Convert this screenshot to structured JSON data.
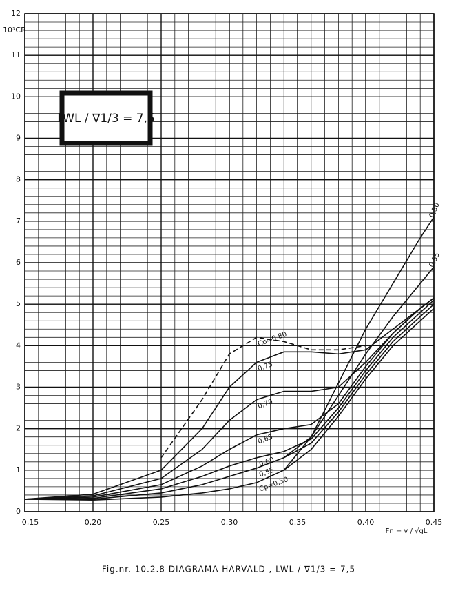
{
  "chart_data": {
    "type": "line",
    "caption": "Fig.nr. 10.2.8   DIAGRAMA HARVALD ,  LWL / ∇1/3 = 7,5",
    "box_label": "LWL / ∇1/3 = 7,5",
    "y_label": "10³CR",
    "x_label": "Fn = v / √gL",
    "x": [
      0.15,
      0.2,
      0.25,
      0.28,
      0.3,
      0.32,
      0.34,
      0.36,
      0.38,
      0.4,
      0.42,
      0.44,
      0.45
    ],
    "series": [
      {
        "name": "Cp=0,50",
        "color": "#111111",
        "values": [
          0.3,
          0.28,
          0.35,
          0.45,
          0.55,
          0.7,
          1.0,
          1.5,
          2.3,
          3.2,
          4.0,
          4.6,
          4.9
        ]
      },
      {
        "name": "0,55",
        "color": "#111111",
        "values": [
          0.3,
          0.3,
          0.45,
          0.65,
          0.85,
          1.05,
          1.3,
          1.65,
          2.4,
          3.3,
          4.1,
          4.7,
          5.0
        ]
      },
      {
        "name": "0,60",
        "color": "#111111",
        "values": [
          0.3,
          0.32,
          0.55,
          0.85,
          1.1,
          1.3,
          1.45,
          1.75,
          2.5,
          3.4,
          4.2,
          4.8,
          5.1
        ]
      },
      {
        "name": "0,65",
        "color": "#111111",
        "values": [
          0.3,
          0.35,
          0.65,
          1.1,
          1.5,
          1.85,
          2.0,
          2.1,
          2.6,
          3.5,
          4.3,
          4.9,
          5.15
        ]
      },
      {
        "name": "0,70",
        "color": "#111111",
        "values": [
          0.3,
          0.38,
          0.8,
          1.5,
          2.2,
          2.7,
          2.9,
          2.9,
          3.0,
          3.6,
          4.3,
          4.9,
          5.15
        ]
      },
      {
        "name": "0,75",
        "color": "#111111",
        "values": [
          0.3,
          0.42,
          1.0,
          2.0,
          3.0,
          3.6,
          3.85,
          3.85,
          3.8,
          3.9,
          4.4,
          4.9,
          5.15
        ]
      },
      {
        "name": "Cp=0,80",
        "color": "#111111",
        "dashed": true,
        "values": [
          null,
          null,
          1.3,
          2.7,
          3.8,
          4.2,
          4.1,
          3.9,
          3.9,
          4.0,
          null,
          null,
          null
        ]
      },
      {
        "name": "0,50",
        "color": "#111111",
        "values": [
          null,
          null,
          null,
          null,
          null,
          null,
          1.0,
          1.8,
          3.1,
          4.4,
          5.5,
          6.6,
          7.1
        ]
      },
      {
        "name": "0,55",
        "color": "#111111",
        "values": [
          null,
          null,
          null,
          null,
          null,
          null,
          1.3,
          1.8,
          2.8,
          3.8,
          4.7,
          5.5,
          5.9
        ]
      }
    ],
    "xlim": [
      0.15,
      0.45
    ],
    "ylim": [
      0,
      12
    ],
    "xticks": [
      {
        "value": 0.15,
        "label": "0,15"
      },
      {
        "value": 0.2,
        "label": "0.20"
      },
      {
        "value": 0.25,
        "label": "0.25"
      },
      {
        "value": 0.3,
        "label": "0.30"
      },
      {
        "value": 0.35,
        "label": "0.35"
      },
      {
        "value": 0.4,
        "label": "0.40"
      },
      {
        "value": 0.45,
        "label": "0.45"
      }
    ],
    "yticks": [
      0,
      1,
      2,
      3,
      4,
      5,
      6,
      7,
      8,
      9,
      10,
      11,
      12
    ],
    "xminorticks": [
      0.15,
      0.16,
      0.17,
      0.18,
      0.19,
      0.2,
      0.21,
      0.22,
      0.23,
      0.24,
      0.25,
      0.26,
      0.27,
      0.28,
      0.29,
      0.3,
      0.31,
      0.32,
      0.33,
      0.34,
      0.35,
      0.36,
      0.37,
      0.38,
      0.39,
      0.4,
      0.41,
      0.42,
      0.43,
      0.44,
      0.45
    ],
    "yminorticks": [
      0,
      0.2,
      0.4,
      0.6,
      0.8,
      1,
      1.2,
      1.4,
      1.6,
      1.8,
      2,
      2.2,
      2.4,
      2.6,
      2.8,
      3,
      3.2,
      3.4,
      3.6,
      3.8,
      4,
      4.2,
      4.4,
      4.6,
      4.8,
      5,
      5.2,
      5.4,
      5.6,
      5.8,
      6,
      6.2,
      6.4,
      6.6,
      6.8,
      7,
      7.2,
      7.4,
      7.6,
      7.8,
      8,
      8.2,
      8.4,
      8.6,
      8.8,
      9,
      9.2,
      9.4,
      9.6,
      9.8,
      10,
      10.2,
      10.4,
      10.6,
      10.8,
      11,
      11.2,
      11.4,
      11.6,
      11.8,
      12
    ],
    "grid": true
  }
}
